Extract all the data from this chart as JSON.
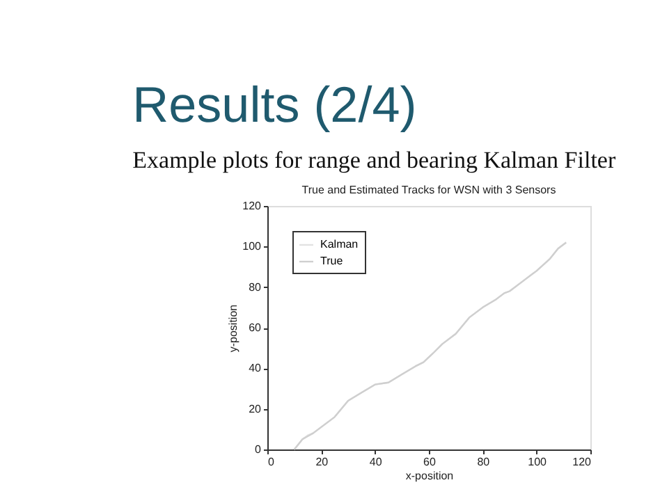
{
  "chart_data": {
    "type": "line",
    "title": "True and Estimated Tracks for WSN with 3 Sensors",
    "annotations": [
      "Results (2/4)",
      "Example plots for range and bearing Kalman Filter"
    ],
    "xlabel": "x-position",
    "ylabel": "y-position",
    "x": [
      10,
      13,
      15,
      17,
      20,
      25,
      30,
      35,
      40,
      45,
      50,
      55,
      58,
      62,
      65,
      70,
      75,
      80,
      85,
      88,
      90,
      95,
      100,
      105,
      108,
      111
    ],
    "series": [
      {
        "name": "Kalman",
        "color": "#e2e2e2",
        "values": [
          0,
          5,
          7,
          8,
          11,
          16,
          24,
          28,
          32,
          33,
          37,
          41,
          43,
          48,
          52,
          57,
          65,
          70,
          74,
          77,
          78,
          83,
          88,
          94,
          99,
          102
        ]
      },
      {
        "name": "True",
        "color": "#cfcfcf",
        "values": [
          0,
          5,
          6.5,
          8,
          11,
          16,
          24,
          28,
          32,
          33,
          37,
          41,
          43,
          48,
          52,
          57,
          65,
          70,
          74,
          77,
          78,
          83,
          88,
          94,
          99,
          102
        ]
      }
    ],
    "xlim": [
      0,
      120
    ],
    "xticks": [
      0,
      20,
      40,
      60,
      80,
      100,
      120
    ],
    "ylim": [
      0,
      120
    ],
    "yticks": [
      0,
      20,
      40,
      60,
      80,
      100,
      120
    ],
    "grid": false,
    "legend": "top left",
    "marker": "none",
    "line_style": "solid"
  }
}
